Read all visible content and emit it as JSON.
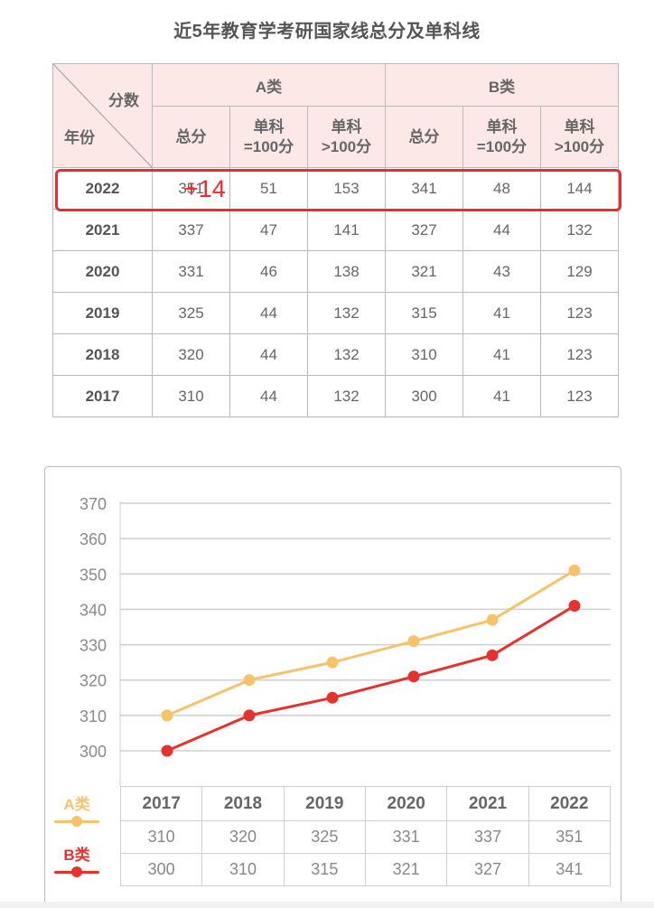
{
  "title": "近5年教育学考研国家线总分及单科线",
  "score_table": {
    "corner_top_label": "分数",
    "corner_bottom_label": "年份",
    "groups": [
      {
        "label": "A类",
        "columns": [
          {
            "line1": "总分",
            "line2": ""
          },
          {
            "line1": "单科",
            "line2": "=100分"
          },
          {
            "line1": "单科",
            "line2": ">100分"
          }
        ]
      },
      {
        "label": "B类",
        "columns": [
          {
            "line1": "总分",
            "line2": ""
          },
          {
            "line1": "单科",
            "line2": "=100分"
          },
          {
            "line1": "单科",
            "line2": ">100分"
          }
        ]
      }
    ],
    "rows": [
      {
        "year": "2022",
        "cells": [
          "351",
          "51",
          "153",
          "341",
          "48",
          "144"
        ]
      },
      {
        "year": "2021",
        "cells": [
          "337",
          "47",
          "141",
          "327",
          "44",
          "132"
        ]
      },
      {
        "year": "2020",
        "cells": [
          "331",
          "46",
          "138",
          "321",
          "43",
          "129"
        ]
      },
      {
        "year": "2019",
        "cells": [
          "325",
          "44",
          "132",
          "315",
          "41",
          "123"
        ]
      },
      {
        "year": "2018",
        "cells": [
          "320",
          "44",
          "132",
          "310",
          "41",
          "123"
        ]
      },
      {
        "year": "2017",
        "cells": [
          "310",
          "44",
          "132",
          "300",
          "41",
          "123"
        ]
      }
    ],
    "highlight_row_year": "2022",
    "annotation": "+14",
    "highlight_color": "#ee2a2a"
  },
  "legend": {
    "a_label": "A类",
    "b_label": "B类",
    "a_color": "#f7c36a",
    "b_color": "#e5322d"
  },
  "data_table": {
    "years": [
      "2017",
      "2018",
      "2019",
      "2020",
      "2021",
      "2022"
    ],
    "a_values": [
      "310",
      "320",
      "325",
      "331",
      "337",
      "351"
    ],
    "b_values": [
      "300",
      "310",
      "315",
      "321",
      "327",
      "341"
    ]
  },
  "chart_data": {
    "type": "line",
    "title": "",
    "xlabel": "",
    "ylabel": "",
    "categories": [
      "2017",
      "2018",
      "2019",
      "2020",
      "2021",
      "2022"
    ],
    "series": [
      {
        "name": "A类",
        "color": "#f7c36a",
        "values": [
          310,
          320,
          325,
          331,
          337,
          351
        ]
      },
      {
        "name": "B类",
        "color": "#e5322d",
        "values": [
          300,
          310,
          315,
          321,
          327,
          341
        ]
      }
    ],
    "y_ticks": [
      300,
      310,
      320,
      330,
      340,
      350,
      360,
      370
    ],
    "ylim": [
      290,
      370
    ],
    "grid": true,
    "legend_position": "bottom-left",
    "data_table_below": true
  }
}
